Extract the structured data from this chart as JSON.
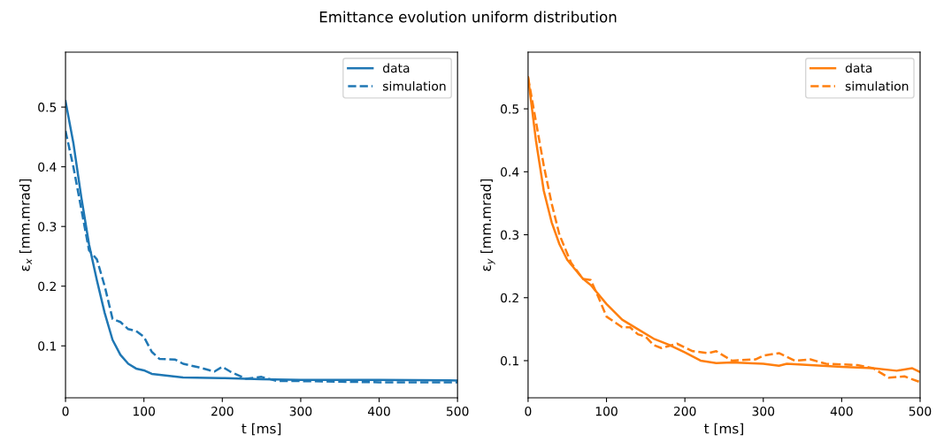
{
  "chart_data": [
    {
      "type": "line",
      "title": "Emittance evolution uniform distribution",
      "xlabel": "t [ms]",
      "ylabel": "ε$_{x}$ [mm.mrad]",
      "xlim": [
        0,
        500
      ],
      "xticks": [
        0,
        100,
        200,
        300,
        400,
        500
      ],
      "ylim": [
        0.013,
        0.592
      ],
      "yticks": [
        0.1,
        0.2,
        0.3,
        0.4,
        0.5
      ],
      "legend": "top right",
      "grid": false,
      "series": [
        {
          "name": "data",
          "color": "#1f77b4",
          "line_style": "solid",
          "x": [
            0,
            10,
            20,
            30,
            40,
            50,
            60,
            70,
            80,
            90,
            100,
            110,
            130,
            150,
            200,
            250,
            300,
            400,
            500
          ],
          "values": [
            0.51,
            0.44,
            0.35,
            0.27,
            0.21,
            0.155,
            0.11,
            0.085,
            0.07,
            0.062,
            0.059,
            0.053,
            0.05,
            0.047,
            0.046,
            0.044,
            0.043,
            0.043,
            0.042
          ]
        },
        {
          "name": "simulation",
          "color": "#1f77b4",
          "line_style": "dashed",
          "x": [
            0,
            10,
            20,
            30,
            40,
            50,
            60,
            70,
            80,
            90,
            100,
            110,
            120,
            140,
            150,
            170,
            190,
            200,
            210,
            230,
            250,
            270,
            300,
            350,
            400,
            500
          ],
          "values": [
            0.46,
            0.4,
            0.33,
            0.26,
            0.245,
            0.2,
            0.145,
            0.14,
            0.128,
            0.125,
            0.115,
            0.09,
            0.078,
            0.077,
            0.07,
            0.064,
            0.057,
            0.065,
            0.057,
            0.045,
            0.048,
            0.041,
            0.041,
            0.04,
            0.039,
            0.039
          ]
        }
      ]
    },
    {
      "type": "line",
      "xlabel": "t [ms]",
      "ylabel": "ε$_{y}$ [mm.mrad]",
      "xlim": [
        0,
        500
      ],
      "xticks": [
        0,
        100,
        200,
        300,
        400,
        500
      ],
      "ylim": [
        0.041,
        0.59
      ],
      "yticks": [
        0.1,
        0.2,
        0.3,
        0.4,
        0.5
      ],
      "legend": "top right",
      "grid": false,
      "series": [
        {
          "name": "data",
          "color": "#ff7f0e",
          "line_style": "solid",
          "x": [
            0,
            10,
            20,
            30,
            40,
            50,
            60,
            70,
            80,
            100,
            120,
            140,
            160,
            180,
            200,
            220,
            240,
            260,
            300,
            320,
            330,
            400,
            440,
            470,
            490,
            500
          ],
          "values": [
            0.55,
            0.45,
            0.37,
            0.32,
            0.285,
            0.26,
            0.245,
            0.23,
            0.22,
            0.19,
            0.165,
            0.15,
            0.135,
            0.125,
            0.113,
            0.1,
            0.096,
            0.097,
            0.095,
            0.092,
            0.095,
            0.09,
            0.088,
            0.084,
            0.088,
            0.082
          ]
        },
        {
          "name": "simulation",
          "color": "#ff7f0e",
          "line_style": "dashed",
          "x": [
            0,
            10,
            20,
            30,
            40,
            55,
            70,
            80,
            90,
            100,
            120,
            130,
            140,
            150,
            160,
            170,
            190,
            210,
            230,
            240,
            260,
            290,
            300,
            320,
            340,
            360,
            380,
            420,
            440,
            460,
            480,
            500
          ],
          "values": [
            0.55,
            0.48,
            0.41,
            0.35,
            0.3,
            0.255,
            0.23,
            0.228,
            0.2,
            0.17,
            0.153,
            0.153,
            0.142,
            0.138,
            0.125,
            0.12,
            0.127,
            0.115,
            0.112,
            0.115,
            0.1,
            0.102,
            0.108,
            0.112,
            0.1,
            0.102,
            0.095,
            0.093,
            0.088,
            0.073,
            0.075,
            0.066
          ]
        }
      ]
    }
  ]
}
